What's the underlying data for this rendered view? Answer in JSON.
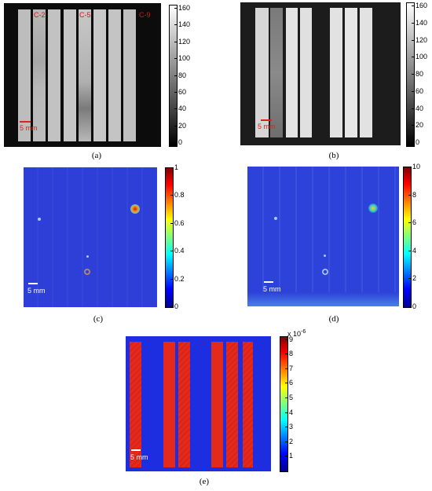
{
  "panels": {
    "a": {
      "caption": "(a)",
      "column_labels": [
        "C-2",
        "C-5",
        "C-9"
      ],
      "scale_label": "5 mm",
      "colorbar_ticks": [
        "160",
        "140",
        "120",
        "100",
        "80",
        "60",
        "40",
        "20",
        "0"
      ]
    },
    "b": {
      "caption": "(b)",
      "scale_label": "5 mm",
      "colorbar_ticks": [
        "160",
        "140",
        "120",
        "100",
        "80",
        "60",
        "40",
        "20",
        "0"
      ]
    },
    "c": {
      "caption": "(c)",
      "scale_label": "5 mm",
      "colorbar_ticks": [
        "1",
        "0.8",
        "0.6",
        "0.4",
        "0.2",
        "0"
      ]
    },
    "d": {
      "caption": "(d)",
      "scale_label": "5 mm",
      "colorbar_ticks": [
        "10",
        "8",
        "6",
        "4",
        "2",
        "0"
      ]
    },
    "e": {
      "caption": "(e)",
      "scale_label": "5 mm",
      "colorbar_exponent": "x 10",
      "colorbar_exponent_power": "-6",
      "colorbar_ticks": [
        "9",
        "8",
        "7",
        "6",
        "5",
        "4",
        "3",
        "2",
        "1"
      ]
    }
  },
  "colors": {
    "scale_bar_red": "#e02020",
    "scale_bar_white": "#ffffff",
    "jet_blue": "#2a3fdc",
    "jet_red": "#e02a1a"
  }
}
